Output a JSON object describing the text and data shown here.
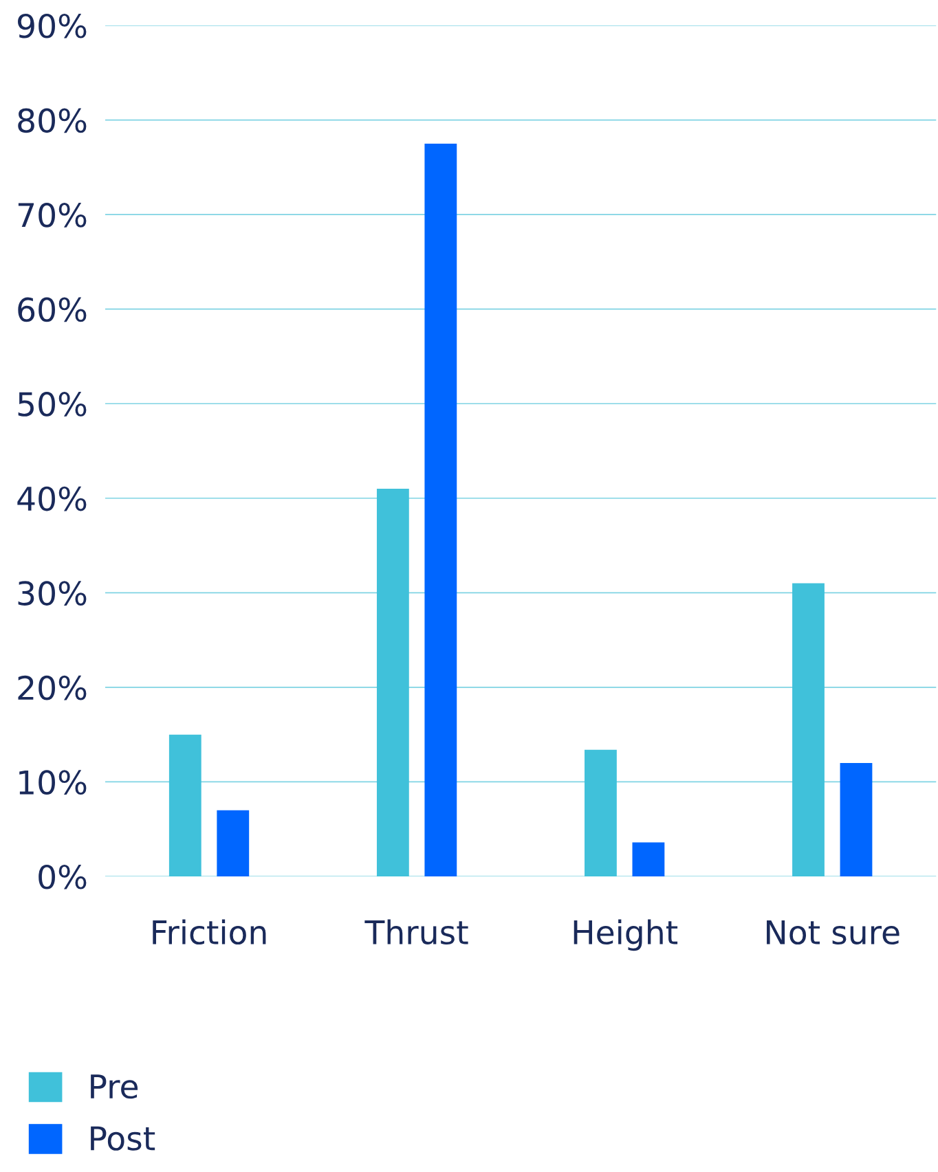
{
  "chart_data": {
    "type": "bar",
    "categories": [
      "Friction",
      "Thrust",
      "Height",
      "Not sure"
    ],
    "series": [
      {
        "name": "Pre",
        "color": "#40c1da",
        "values": [
          15,
          41,
          13.4,
          31
        ]
      },
      {
        "name": "Post",
        "color": "#0066ff",
        "values": [
          7,
          77.5,
          3.6,
          12
        ]
      }
    ],
    "ylim": [
      0,
      90
    ],
    "yticks": [
      {
        "value": 0,
        "label": "0%"
      },
      {
        "value": 10,
        "label": "10%"
      },
      {
        "value": 20,
        "label": "20%"
      },
      {
        "value": 30,
        "label": "30%"
      },
      {
        "value": 40,
        "label": "40%"
      },
      {
        "value": 50,
        "label": "50%"
      },
      {
        "value": 60,
        "label": "60%"
      },
      {
        "value": 70,
        "label": "70%"
      },
      {
        "value": 80,
        "label": "80%"
      },
      {
        "value": 90,
        "label": "90%"
      }
    ],
    "grid": "y",
    "legend": "bottom left"
  }
}
